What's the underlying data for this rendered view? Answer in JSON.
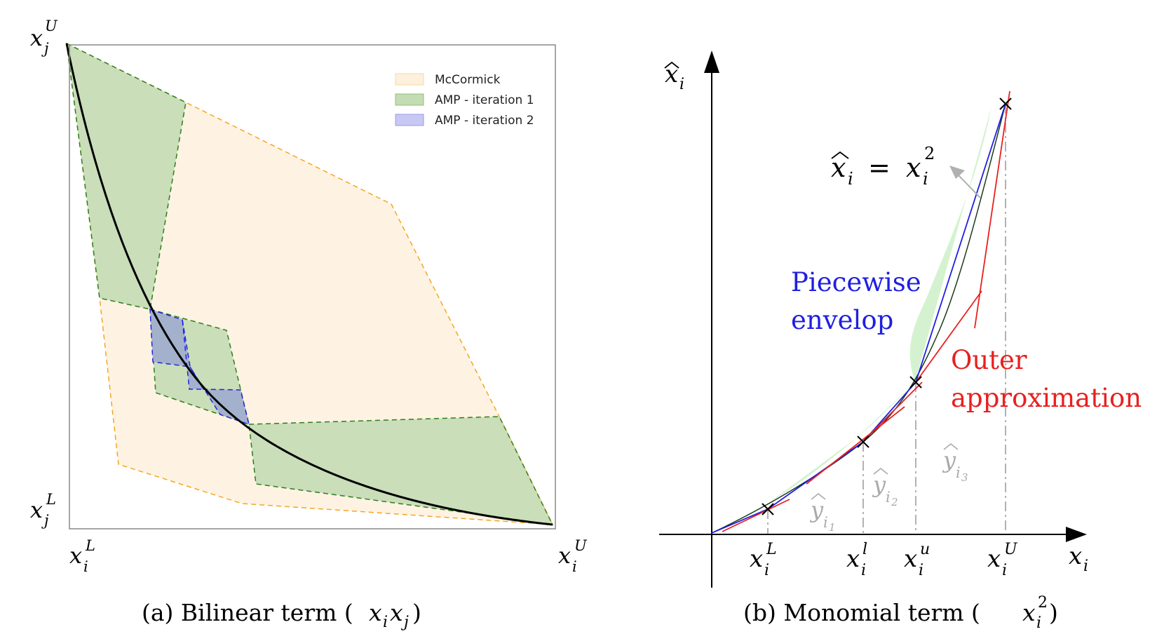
{
  "panel_a": {
    "caption": "(a) Bilinear term (x",
    "caption_full": "(a) Bilinear term (xᵢxⱼ)",
    "axis": {
      "xj_upper": "x",
      "xj_upper_sub": "j",
      "xj_upper_sup": "U",
      "xj_lower": "x",
      "xj_lower_sub": "j",
      "xj_lower_sup": "L",
      "xi_lower": "x",
      "xi_lower_sub": "i",
      "xi_lower_sup": "L",
      "xi_upper": "x",
      "xi_upper_sub": "i",
      "xi_upper_sup": "U"
    },
    "legend": [
      {
        "label": "McCormick",
        "fill": "#fdf0dc",
        "stroke": "#f6d9a8"
      },
      {
        "label": "AMP - iteration 1",
        "fill": "#c4dcb3",
        "stroke": "#8fbf7a"
      },
      {
        "label": "AMP - iteration 2",
        "fill": "#c8c8f4",
        "stroke": "#9a9ae8"
      }
    ],
    "colors": {
      "mccormick_fill": "#fef3e2",
      "mccormick_edge": "#f5a623",
      "amp1_fill": "#c9deb9",
      "amp1_edge": "#2e7d1e",
      "amp2_fill": "#a4b1cc",
      "amp2_edge": "#2424e0",
      "curve": "#000000",
      "frame": "#888888"
    }
  },
  "panel_b": {
    "caption_prefix": "(b) Monomial term (",
    "caption_var": "x",
    "caption_sub": "i",
    "caption_sup": "2",
    "caption_suffix": ")",
    "equation": {
      "lhs": "x",
      "lhs_sub": "i",
      "eq": "=",
      "rhs": "x",
      "rhs_sub": "i",
      "rhs_sup": "2"
    },
    "y_axis_label": "x",
    "y_axis_sub": "i",
    "x_axis_label": "x",
    "x_axis_sub": "i",
    "ticks": [
      {
        "base": "x",
        "sub": "i",
        "sup": "L"
      },
      {
        "base": "x",
        "sub": "i",
        "sup": "l"
      },
      {
        "base": "x",
        "sub": "i",
        "sup": "u"
      },
      {
        "base": "x",
        "sub": "i",
        "sup": "U"
      }
    ],
    "y_hats": [
      {
        "base": "y",
        "sub": "i",
        "subsub": "1"
      },
      {
        "base": "y",
        "sub": "i",
        "subsub": "2"
      },
      {
        "base": "y",
        "sub": "i",
        "subsub": "3"
      }
    ],
    "piecewise_label_1": "Piecewise",
    "piecewise_label_2": "envelop",
    "outer_label_1": "Outer",
    "outer_label_2": "approximation",
    "colors": {
      "envelope": "#1f1fe0",
      "outer": "#e82020",
      "fill": "#d4f2cf",
      "curve": "#1a3a1a",
      "guide": "#aaaaaa",
      "axis": "#000000"
    }
  }
}
